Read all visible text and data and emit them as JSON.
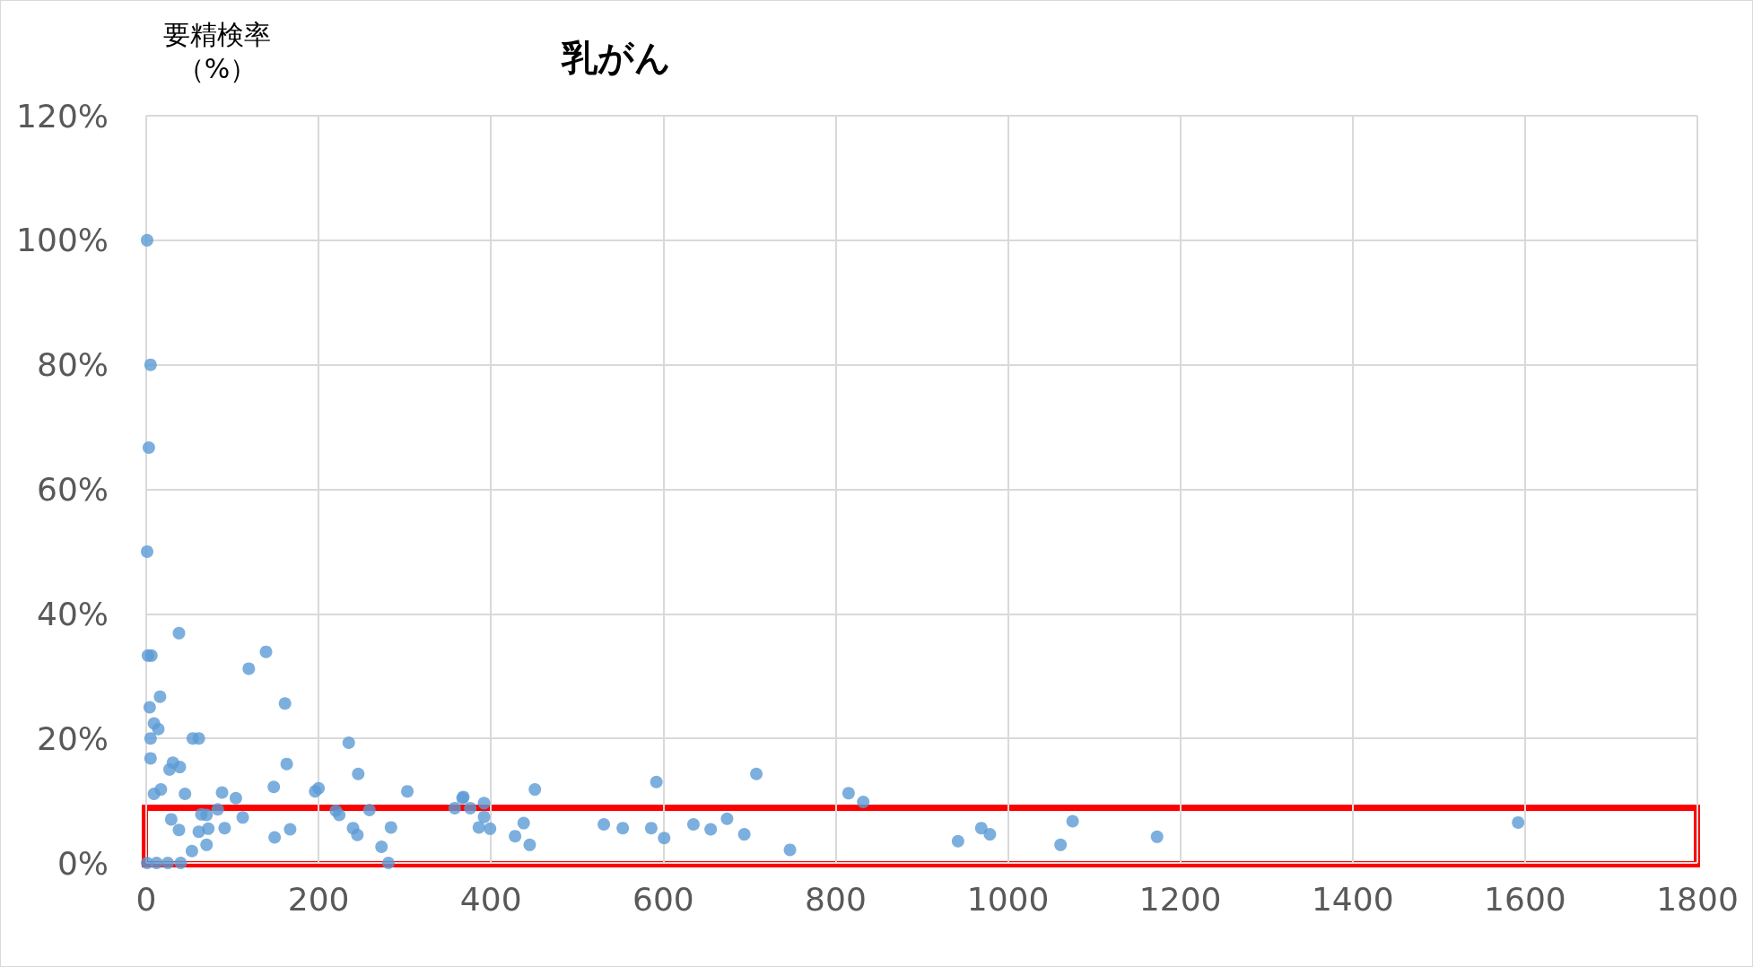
{
  "chart_data": {
    "type": "scatter",
    "title": "乳がん",
    "ylabel": "要精検率（%）",
    "x": [
      1,
      5,
      3,
      1,
      2,
      6,
      38,
      4,
      16,
      5,
      9,
      14,
      5,
      9,
      17,
      27,
      31,
      39,
      45,
      54,
      61,
      119,
      139,
      161,
      163,
      148,
      88,
      104,
      196,
      200,
      235,
      246,
      303,
      367,
      451,
      83,
      64,
      70,
      29,
      112,
      72,
      61,
      38,
      91,
      149,
      167,
      70,
      53,
      1,
      12,
      25,
      40,
      281,
      220,
      224,
      259,
      240,
      245,
      284,
      273,
      358,
      368,
      376,
      392,
      392,
      386,
      399,
      438,
      428,
      445,
      531,
      553,
      586,
      601,
      592,
      635,
      655,
      674,
      694,
      708,
      747,
      815,
      832,
      942,
      969,
      979,
      1061,
      1075,
      1173,
      1592
    ],
    "series": [
      {
        "color": "#5b9bd5",
        "values": [
          100,
          80,
          66.7,
          50,
          33.3,
          33.3,
          36.9,
          25,
          26.7,
          20,
          22.4,
          21.5,
          16.8,
          11.1,
          11.8,
          15,
          16.1,
          15.4,
          11.1,
          20,
          20,
          31.2,
          33.9,
          25.6,
          15.9,
          12.2,
          11.3,
          10.4,
          11.5,
          12,
          19.3,
          14.3,
          11.5,
          10.4,
          11.8,
          8.6,
          7.8,
          7.7,
          7,
          7.3,
          5.5,
          5,
          5.3,
          5.6,
          4.1,
          5.4,
          2.9,
          1.9,
          0,
          0,
          0,
          0,
          0,
          8.4,
          7.7,
          8.5,
          5.6,
          4.5,
          5.7,
          2.6,
          8.8,
          10.6,
          8.8,
          9.6,
          7.4,
          5.7,
          5.5,
          6.4,
          4.3,
          2.9,
          6.2,
          5.6,
          5.6,
          4,
          13,
          6.2,
          5.4,
          7.1,
          4.6,
          14.3,
          2.1,
          11.2,
          9.8,
          3.5,
          5.6,
          4.6,
          2.9,
          6.7,
          4.2,
          6.5
        ]
      }
    ],
    "xlim": [
      0,
      1800
    ],
    "xticks": [
      0,
      200,
      400,
      600,
      800,
      1000,
      1200,
      1400,
      1600,
      1800
    ],
    "ylim": [
      0,
      120
    ],
    "yticks": [
      {
        "value": 0,
        "label": "0%"
      },
      {
        "value": 20,
        "label": "20%"
      },
      {
        "value": 40,
        "label": "40%"
      },
      {
        "value": 60,
        "label": "60%"
      },
      {
        "value": 80,
        "label": "80%"
      },
      {
        "value": 100,
        "label": "100%"
      },
      {
        "value": 120,
        "label": "120%"
      }
    ],
    "grid": true,
    "marker": "circle"
  }
}
